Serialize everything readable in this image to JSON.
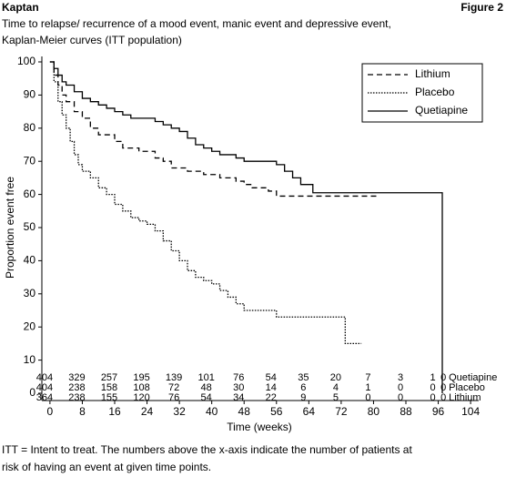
{
  "header": {
    "left": "Kaptan",
    "right": "Figure 2"
  },
  "chart_data": {
    "type": "line",
    "step": "post",
    "title": [
      "Time to relapse/ recurrence of a mood event, manic event and depressive event,",
      "Kaplan-Meier curves (ITT population)"
    ],
    "xlabel": "Time (weeks)",
    "ylabel": "Proportion event free",
    "xlim": [
      -2,
      106
    ],
    "ylim": [
      0,
      100
    ],
    "xticks": [
      0,
      8,
      16,
      24,
      32,
      40,
      48,
      56,
      64,
      72,
      80,
      88,
      96,
      104
    ],
    "yticks": [
      0,
      10,
      20,
      30,
      40,
      50,
      60,
      70,
      80,
      90,
      100
    ],
    "legend": "upper right",
    "series": [
      {
        "name": "Lithium",
        "color": "#000000",
        "dash": "dashed",
        "x": [
          0,
          1,
          2,
          3,
          4,
          6,
          8,
          10,
          12,
          16,
          18,
          22,
          26,
          28,
          30,
          34,
          38,
          42,
          46,
          48,
          50,
          54,
          56,
          81
        ],
        "values": [
          100,
          96,
          93,
          90,
          88,
          85,
          83,
          80,
          78,
          76,
          74,
          73,
          71,
          70,
          68,
          67,
          66,
          65,
          64,
          63,
          62,
          61,
          59.5,
          59.5
        ]
      },
      {
        "name": "Placebo",
        "color": "#000000",
        "dash": "dotted",
        "x": [
          0,
          1,
          2,
          3,
          4,
          5,
          6,
          7,
          8,
          10,
          12,
          14,
          16,
          18,
          20,
          22,
          24,
          26,
          28,
          30,
          32,
          34,
          36,
          38,
          40,
          42,
          44,
          46,
          48,
          56,
          73,
          77
        ],
        "values": [
          100,
          94,
          88,
          84,
          80,
          76,
          72,
          69,
          67,
          65,
          62,
          60,
          57,
          55,
          53,
          52,
          51,
          49,
          46,
          43,
          40,
          37,
          35,
          34,
          33,
          31,
          29,
          27,
          25,
          23,
          15,
          15
        ]
      },
      {
        "name": "Quetiapine",
        "color": "#000000",
        "dash": "solid",
        "x": [
          0,
          1,
          2,
          3,
          4,
          6,
          8,
          10,
          12,
          14,
          16,
          18,
          20,
          24,
          26,
          28,
          30,
          32,
          34,
          36,
          38,
          40,
          42,
          46,
          48,
          54,
          56,
          58,
          60,
          62,
          65,
          97,
          97
        ],
        "values": [
          100,
          98,
          96,
          94,
          93,
          91,
          89,
          88,
          87,
          86,
          85,
          84,
          83,
          83,
          82,
          81,
          80,
          79,
          77,
          75,
          74,
          73,
          72,
          71,
          70,
          70,
          69,
          67,
          65,
          63,
          60.5,
          60.5,
          0
        ]
      }
    ],
    "at_risk": {
      "times": [
        0,
        8,
        16,
        24,
        32,
        40,
        48,
        56,
        64,
        72,
        80,
        88,
        96,
        104
      ],
      "rows": [
        {
          "series": 2,
          "counts": [
            404,
            329,
            257,
            195,
            139,
            101,
            76,
            54,
            35,
            20,
            7,
            3,
            1,
            0
          ]
        },
        {
          "series": 1,
          "counts": [
            404,
            238,
            158,
            108,
            72,
            48,
            30,
            14,
            6,
            4,
            1,
            0,
            0,
            0
          ]
        },
        {
          "series": 0,
          "counts": [
            364,
            238,
            155,
            120,
            76,
            54,
            34,
            22,
            9,
            5,
            0,
            0,
            0,
            0
          ]
        }
      ]
    }
  },
  "footer": [
    "ITT = Intent to treat. The numbers above the x-axis indicate the number of patients at",
    "risk of having an event at given time points."
  ]
}
